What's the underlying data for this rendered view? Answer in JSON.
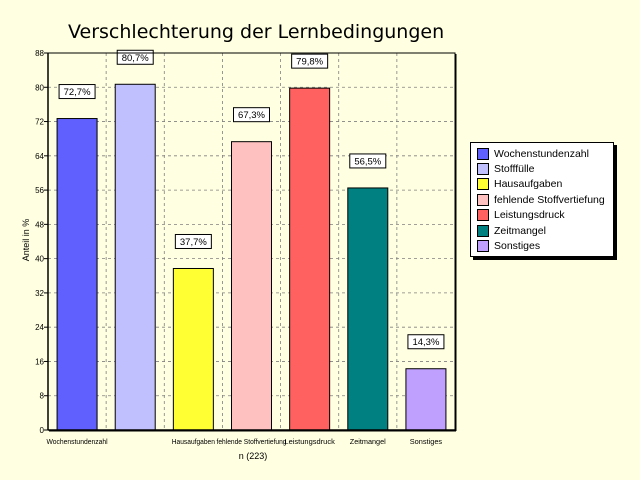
{
  "chart_data": {
    "type": "bar",
    "title": "Verschlechterung der Lernbedingungen",
    "ylabel": "Anteil in %",
    "note": "n (223)",
    "ylim": [
      0,
      88
    ],
    "yticks": [
      "0",
      "8",
      "16",
      "24",
      "32",
      "40",
      "48",
      "56",
      "64",
      "72",
      "80",
      "88"
    ],
    "grid": true,
    "legend_position": "right",
    "categories": [
      "Wochenstundenzahl",
      "",
      "Hausaufgaben",
      "fehlende Stoffvertiefung",
      "Leistungsdruck",
      "Zeitmangel",
      "Sonstiges"
    ],
    "series": [
      {
        "name": "Wochenstundenzahl",
        "value": 72.7,
        "label": "72,7%",
        "color": "#6060ff"
      },
      {
        "name": "Stofffülle",
        "value": 80.7,
        "label": "80,7%",
        "color": "#c0c0ff"
      },
      {
        "name": "Hausaufgaben",
        "value": 37.7,
        "label": "37,7%",
        "color": "#ffff33"
      },
      {
        "name": "fehlende Stoffvertiefung",
        "value": 67.3,
        "label": "67,3%",
        "color": "#ffc0c0"
      },
      {
        "name": "Leistungsdruck",
        "value": 79.8,
        "label": "79,8%",
        "color": "#ff6060"
      },
      {
        "name": "Zeitmangel",
        "value": 56.5,
        "label": "56,5%",
        "color": "#008080"
      },
      {
        "name": "Sonstiges",
        "value": 14.3,
        "label": "14,3%",
        "color": "#c0a0ff"
      }
    ]
  }
}
